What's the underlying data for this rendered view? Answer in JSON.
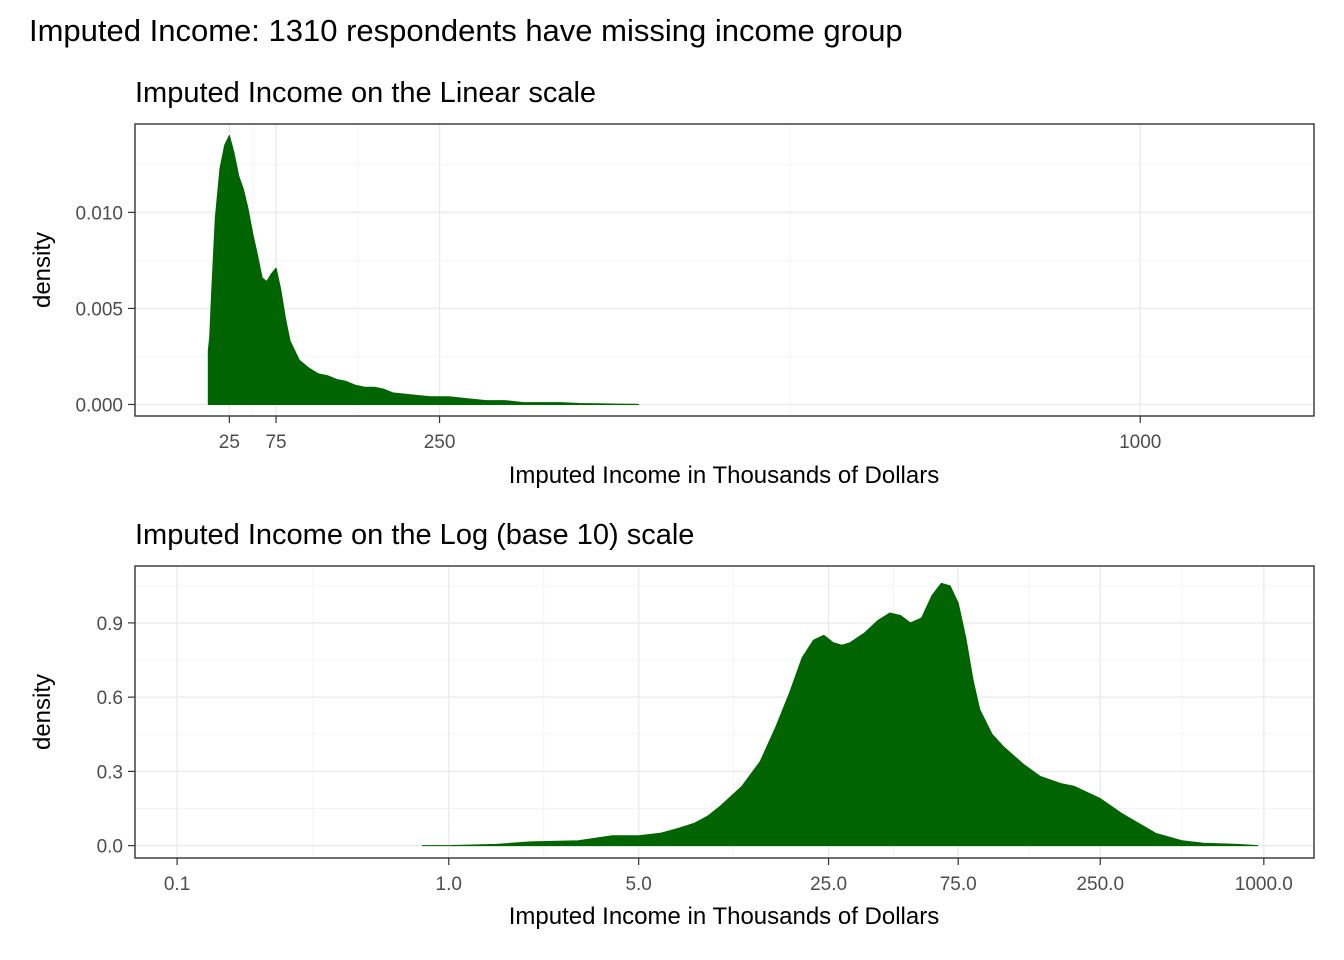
{
  "figure": {
    "title": "Imputed Income: 1310 respondents have missing income group"
  },
  "colors": {
    "fill": "#006400",
    "panel_background": "#ffffff",
    "grid": "#ebebeb",
    "border": "#333333"
  },
  "chart_data": [
    {
      "type": "area",
      "title": "Imputed Income on the Linear scale",
      "xlabel": "Imputed Income in Thousands of Dollars",
      "ylabel": "density",
      "x_scale": "linear",
      "xlim": [
        -76,
        1186
      ],
      "ylim": [
        -0.0006,
        0.0146
      ],
      "xticks": [
        25,
        75,
        250,
        1000
      ],
      "xtick_labels": [
        "25",
        "75",
        "250",
        "1000"
      ],
      "yticks": [
        0.0,
        0.005,
        0.01
      ],
      "ytick_labels": [
        "0.000",
        "0.005",
        "0.010"
      ],
      "grid": true,
      "series": [
        {
          "x": [
            2.5,
            2.5,
            4,
            6,
            10,
            15,
            20,
            25,
            30,
            35,
            40,
            45,
            50,
            55,
            60,
            65,
            70,
            75,
            80,
            85,
            90,
            100,
            110,
            120,
            130,
            140,
            150,
            160,
            170,
            180,
            190,
            200,
            220,
            240,
            260,
            280,
            300,
            320,
            340,
            360,
            380,
            400,
            420,
            440,
            460,
            463
          ],
          "y": [
            0.0,
            0.0028,
            0.0035,
            0.0058,
            0.0097,
            0.0123,
            0.0135,
            0.014,
            0.0131,
            0.0119,
            0.0112,
            0.0102,
            0.0089,
            0.0078,
            0.0066,
            0.0064,
            0.0068,
            0.0071,
            0.006,
            0.0045,
            0.0033,
            0.0023,
            0.0019,
            0.0016,
            0.0015,
            0.0013,
            0.0012,
            0.001,
            0.0009,
            0.0009,
            0.0008,
            0.0006,
            0.0005,
            0.0004,
            0.0004,
            0.0003,
            0.0002,
            0.0002,
            0.0001,
            0.0001,
            0.0001,
            5e-05,
            4e-05,
            2e-05,
            1e-05,
            0.0
          ]
        }
      ]
    },
    {
      "type": "area",
      "title": "Imputed Income on the Log (base 10) scale",
      "xlabel": "Imputed Income in Thousands of Dollars",
      "ylabel": "density",
      "x_scale": "log10",
      "xlim": [
        0.07,
        1530
      ],
      "ylim": [
        -0.05,
        1.13
      ],
      "xticks": [
        0.1,
        1,
        5,
        25,
        75,
        250,
        1000
      ],
      "xtick_labels": [
        "0.1",
        "1.0",
        "5.0",
        "25.0",
        "75.0",
        "250.0",
        "1000.0"
      ],
      "yticks": [
        0.0,
        0.3,
        0.6,
        0.9
      ],
      "ytick_labels": [
        "0.0",
        "0.3",
        "0.6",
        "0.9"
      ],
      "grid": true,
      "series": [
        {
          "x": [
            0.8,
            1.0,
            1.5,
            2.0,
            3.0,
            4.0,
            5.0,
            6.0,
            7.0,
            8.0,
            9.0,
            10.0,
            12.0,
            14.0,
            16.0,
            18.0,
            20.0,
            22.0,
            24.0,
            26.0,
            28.0,
            30.0,
            34.0,
            38.0,
            42.0,
            46.0,
            50.0,
            55.0,
            60.0,
            65.0,
            70.0,
            75.0,
            80.0,
            85.0,
            90.0,
            100.0,
            110.0,
            130.0,
            150.0,
            180.0,
            200.0,
            250.0,
            300.0,
            400.0,
            500.0,
            600.0,
            800.0,
            950.0
          ],
          "y": [
            0.0,
            0.0,
            0.005,
            0.015,
            0.02,
            0.04,
            0.04,
            0.05,
            0.07,
            0.09,
            0.12,
            0.16,
            0.24,
            0.34,
            0.48,
            0.62,
            0.76,
            0.83,
            0.85,
            0.82,
            0.81,
            0.82,
            0.86,
            0.91,
            0.94,
            0.93,
            0.9,
            0.92,
            1.01,
            1.06,
            1.05,
            0.98,
            0.84,
            0.67,
            0.55,
            0.45,
            0.4,
            0.33,
            0.28,
            0.25,
            0.24,
            0.19,
            0.13,
            0.05,
            0.02,
            0.01,
            0.005,
            0.0
          ]
        }
      ]
    }
  ]
}
